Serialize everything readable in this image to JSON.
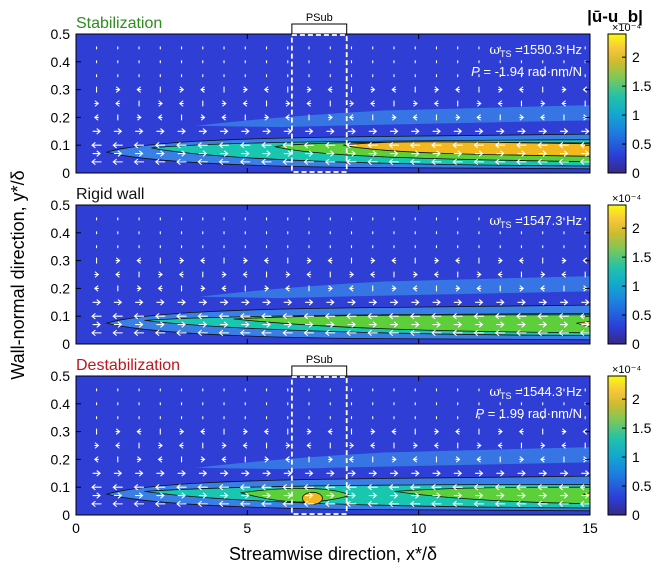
{
  "chart_data": {
    "type": "heatmap",
    "figure": {
      "xlabel": "Streamwise direction, x*/δ",
      "ylabel": "Wall-normal direction, y*/δ",
      "colorbar_title": "|ū-u_b|",
      "xlim": [
        0,
        15
      ],
      "x_ticks": [
        "0",
        "5",
        "10",
        "15"
      ],
      "ylim": [
        0,
        0.5
      ],
      "y_ticks": [
        "0",
        "0.1",
        "0.2",
        "0.3",
        "0.4",
        "0.5"
      ]
    },
    "panels": [
      {
        "title": "Stabilization",
        "title_color": "#2e8b1e",
        "omega_label": "ω_TS =1550.3 Hz",
        "omega_symbol": "ω",
        "omega_sub": "TS",
        "omega_value": "=1550.3 Hz",
        "p_symbol": "P",
        "p_value": "= -1.94 rad·nm/N",
        "psub_label": "PSub",
        "psub_x": [
          6.3,
          7.9
        ],
        "colorbar": {
          "range": [
            0,
            0.00024
          ],
          "exponent": "×10⁻⁴",
          "ticks": [
            "0",
            "0.5",
            "1",
            "1.5",
            "2"
          ]
        }
      },
      {
        "title": "Rigid wall",
        "title_color": "#111111",
        "omega_label": "ω_TS =1547.3 Hz",
        "omega_symbol": "ω",
        "omega_sub": "TS",
        "omega_value": "=1547.3 Hz",
        "colorbar": {
          "range": [
            0,
            0.00024
          ],
          "exponent": "×10⁻⁴",
          "ticks": [
            "0",
            "0.5",
            "1",
            "1.5",
            "2"
          ]
        }
      },
      {
        "title": "Destabilization",
        "title_color": "#c0161b",
        "omega_label": "ω_TS =1544.3 Hz",
        "omega_symbol": "ω",
        "omega_sub": "TS",
        "omega_value": "=1544.3 Hz",
        "p_symbol": "P",
        "p_value": "= 1.99 rad·nm/N",
        "psub_label": "PSub",
        "psub_x": [
          6.3,
          7.9
        ],
        "colorbar": {
          "range": [
            0,
            0.00024
          ],
          "exponent": "×10⁻⁴",
          "ticks": [
            "0",
            "0.5",
            "1",
            "1.5",
            "2"
          ]
        }
      }
    ],
    "colors": {
      "level0": "#2f3fd6",
      "level1": "#3a7fe6",
      "level2": "#19c7b0",
      "level3": "#5ccf3a",
      "level4": "#f2b81e",
      "level5": "#f2e61c",
      "arrow": "#ffffff"
    }
  }
}
